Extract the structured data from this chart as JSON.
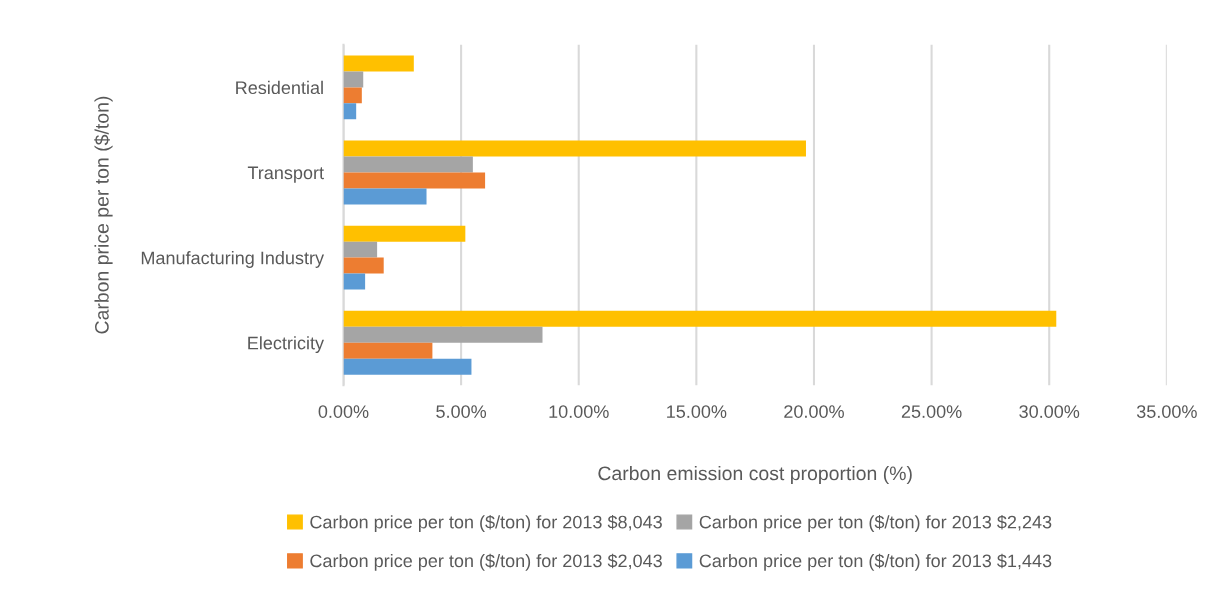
{
  "chart_data": {
    "type": "bar",
    "orientation": "horizontal",
    "xlabel": "Carbon emission cost proportion (%)",
    "ylabel": "Carbon price per ton ($/ton)",
    "categories": [
      "Residential",
      "Transport",
      "Manufacturing Industry",
      "Electricity"
    ],
    "series": [
      {
        "name": "Carbon price per ton ($/ton) for 2013 $8,043",
        "color": "#ffc000",
        "values": [
          2.99,
          19.66,
          5.18,
          30.3
        ]
      },
      {
        "name": "Carbon price per ton ($/ton) for 2013 $2,243",
        "color": "#a5a5a5",
        "values": [
          0.84,
          5.5,
          1.43,
          8.46
        ]
      },
      {
        "name": "Carbon price per ton ($/ton) for 2013 $2,043",
        "color": "#ed7d31",
        "values": [
          0.78,
          6.02,
          1.71,
          3.78
        ]
      },
      {
        "name": "Carbon price per ton ($/ton) for 2013 $1,443",
        "color": "#5b9bd5",
        "values": [
          0.54,
          3.53,
          0.92,
          5.44
        ]
      }
    ],
    "xlim": [
      0,
      35
    ],
    "xticks": [
      {
        "value": 0,
        "label": "0.00%"
      },
      {
        "value": 5,
        "label": "5.00%"
      },
      {
        "value": 10,
        "label": "10.00%"
      },
      {
        "value": 15,
        "label": "15.00%"
      },
      {
        "value": 20,
        "label": "20.00%"
      },
      {
        "value": 25,
        "label": "25.00%"
      },
      {
        "value": 30,
        "label": "30.00%"
      },
      {
        "value": 35,
        "label": "35.00%"
      }
    ],
    "grid": "x",
    "legend": "bottom"
  }
}
